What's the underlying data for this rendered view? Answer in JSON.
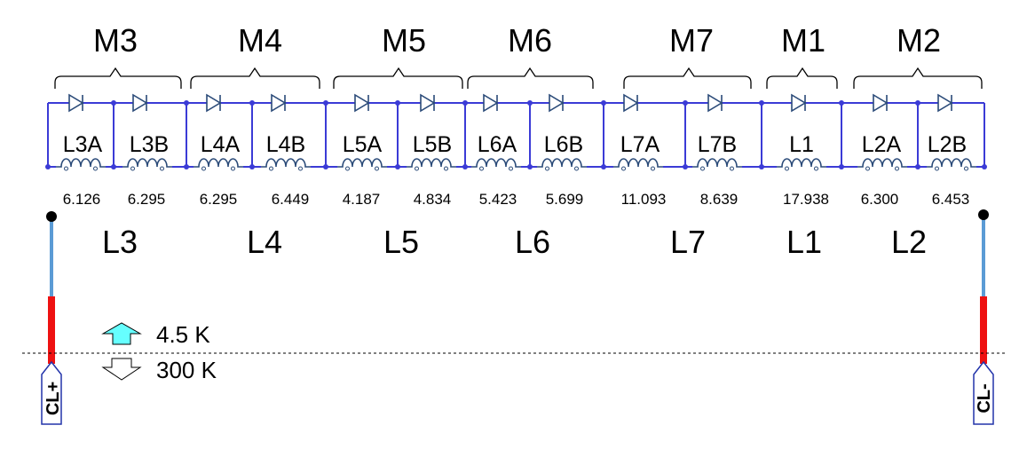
{
  "magnets": [
    "M3",
    "M4",
    "M5",
    "M6",
    "M7",
    "M1",
    "M2"
  ],
  "coils": [
    "L3A",
    "L3B",
    "L4A",
    "L4B",
    "L5A",
    "L5B",
    "L6A",
    "L6B",
    "L7A",
    "L7B",
    "L1",
    "L2A",
    "L2B"
  ],
  "values": [
    "6.126",
    "6.295",
    "6.295",
    "6.449",
    "4.187",
    "4.834",
    "5.423",
    "5.699",
    "11.093",
    "8.639",
    "17.938",
    "6.300",
    "6.453"
  ],
  "circuits": [
    "L3",
    "L4",
    "L5",
    "L6",
    "L7",
    "L1",
    "L2"
  ],
  "legend": {
    "warm": "4.5 K",
    "cold": "300 K"
  },
  "leads": {
    "plus": "CL+",
    "minus": "CL-"
  },
  "colors": {
    "circuit": "#3b3bd6",
    "diode": "#2a4a78",
    "lead_wire": "#5b9bd5",
    "lead_red": "#ee1111",
    "warm_arrow": "#66ffff",
    "tag": "#2233aa"
  }
}
